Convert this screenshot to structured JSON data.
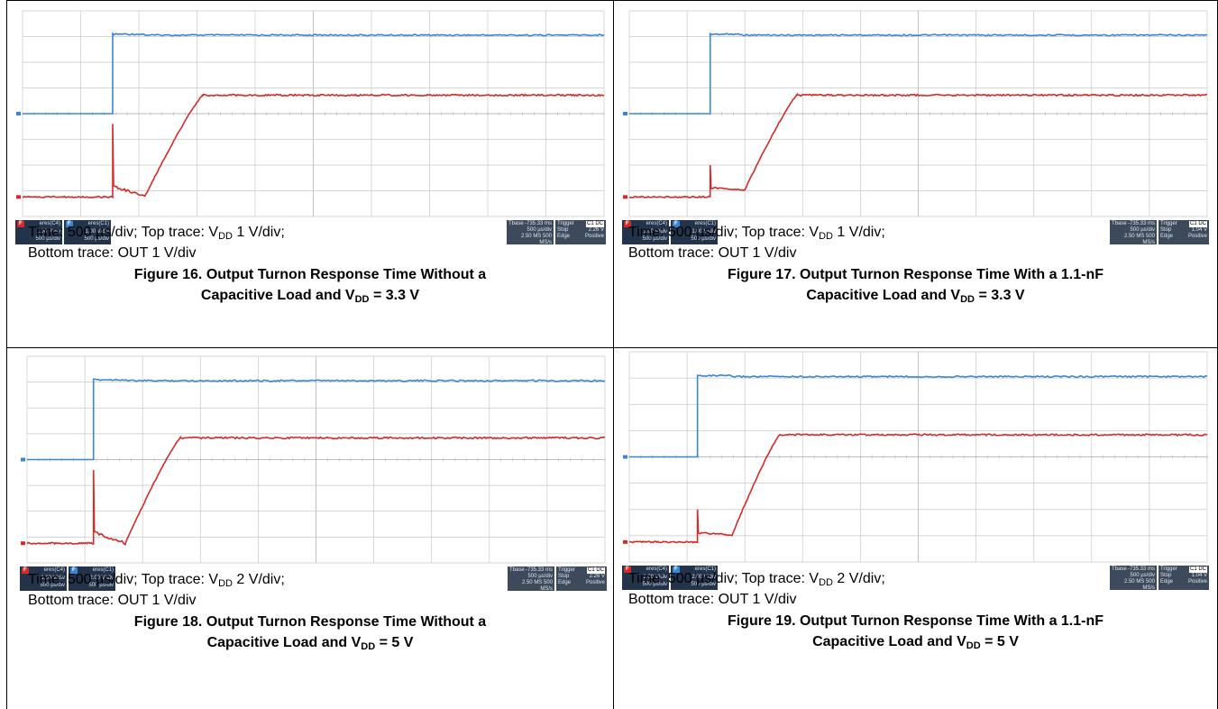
{
  "colors": {
    "ch_top": "#3a86d6",
    "ch_bottom": "#d42a2a",
    "grid": "#c8c8c8",
    "status_bg": "#22334a"
  },
  "panels": [
    {
      "line1_pre": "Time: 500 ",
      "line1_mu": "µ",
      "line1_post": "s/div; Top trace: V",
      "line1_sub": "DD",
      "line1_tail": " 1 V/div;",
      "line2": "Bottom trace: OUT 1 V/div",
      "cap1": "Figure 16. Output Turnon Response Time Without a",
      "cap2_pre": "Capacitive Load and V",
      "cap2_sub": "DD",
      "cap2_post": " = 3.3 V",
      "tiles": [
        {
          "tag": "F",
          "name": "eres(C4)",
          "l1": "1.00 V/div",
          "l2": "500 µs/div"
        },
        {
          "tag": "F",
          "name": "eres(C1)",
          "l1": "1.00 V/div",
          "l2": "500 µs/div"
        }
      ],
      "tbase": {
        "label": "Tbase",
        "value": "-735.33 ms",
        "l1": "500 µs/div",
        "l2": "2.50 MS  500 MS/s"
      },
      "trigger": {
        "label": "Trigger",
        "ch": "C1 DC",
        "mode": "Stop",
        "level": "2.26 V",
        "type": "Edge",
        "slope": "Positive"
      },
      "trace": {
        "edge": 0.155,
        "bottom_type": "no_cap",
        "bottom_high": 0.41,
        "bottom_rise_end": 0.31
      }
    },
    {
      "line1_pre": "Time: 500 ",
      "line1_mu": "µ",
      "line1_post": "s/div; Top trace: V",
      "line1_sub": "DD",
      "line1_tail": " 1 V/div;",
      "line2": "Bottom trace: OUT 1 V/div",
      "cap1": "Figure 17. Output Turnon Response Time With a 1.1-nF",
      "cap2_pre": "Capacitive Load and V",
      "cap2_sub": "DD",
      "cap2_post": " = 3.3 V",
      "tiles": [
        {
          "tag": "F",
          "name": "eres(C4)",
          "l1": "1.00 V/div",
          "l2": "500 µs/div"
        },
        {
          "tag": "F",
          "name": "eres(C1)",
          "l1": "1.00 V/div",
          "l2": "500 µs/div"
        }
      ],
      "tbase": {
        "label": "Tbase",
        "value": "-735.33 ms",
        "l1": "500 µs/div",
        "l2": "2.50 MS  500 MS/s"
      },
      "trigger": {
        "label": "Trigger",
        "ch": "C1 DC",
        "mode": "Stop",
        "level": "1.04 V",
        "type": "Edge",
        "slope": "Positive"
      },
      "trace": {
        "edge": 0.14,
        "bottom_type": "cap",
        "bottom_high": 0.41,
        "bottom_rise_end": 0.29
      }
    },
    {
      "line1_pre": "Time: 500 ",
      "line1_mu": "µ",
      "line1_post": "s/div; Top trace: V",
      "line1_sub": "DD",
      "line1_tail": " 2 V/div;",
      "line2": "Bottom trace: OUT 1 V/div",
      "cap1": "Figure 18. Output Turnon Response Time Without a",
      "cap2_pre": "Capacitive Load and V",
      "cap2_sub": "DD",
      "cap2_post": " = 5 V",
      "tiles": [
        {
          "tag": "F",
          "name": "eres(C4)",
          "l1": "1.00 V/div",
          "l2": "500 µs/div"
        },
        {
          "tag": "F",
          "name": "eres(C1)",
          "l1": "2.00 V/div",
          "l2": "500 µs/div"
        }
      ],
      "tbase": {
        "label": "Tbase",
        "value": "-735.33 ms",
        "l1": "500 µs/div",
        "l2": "2.50 MS  500 MS/s"
      },
      "trigger": {
        "label": "Trigger",
        "ch": "C1 DC",
        "mode": "Stop",
        "level": "2.26 V",
        "type": "Edge",
        "slope": "Positive"
      },
      "trace": {
        "edge": 0.115,
        "bottom_type": "no_cap",
        "bottom_high": 0.395,
        "bottom_rise_end": 0.265
      }
    },
    {
      "line1_pre": "Time: 500 ",
      "line1_mu": "µ",
      "line1_post": "s/div; Top trace: V",
      "line1_sub": "DD",
      "line1_tail": " 2 V/div;",
      "line2": "Bottom trace: OUT 1 V/div",
      "cap1": "Figure 19. Output Turnon Response Time With a 1.1-nF",
      "cap2_pre": "Capacitive Load and V",
      "cap2_sub": "DD",
      "cap2_post": " = 5 V",
      "tiles": [
        {
          "tag": "F",
          "name": "eres(C4)",
          "l1": "1.00 V/div",
          "l2": "500 µs/div"
        },
        {
          "tag": "F",
          "name": "eres(C1)",
          "l1": "2.00 V/div",
          "l2": "500 µs/div"
        }
      ],
      "tbase": {
        "label": "Tbase",
        "value": "-735.33 ms",
        "l1": "500 µs/div",
        "l2": "2.50 MS  500 MS/s"
      },
      "trigger": {
        "label": "Trigger",
        "ch": "C1 DC",
        "mode": "Stop",
        "level": "1.04 V",
        "type": "Edge",
        "slope": "Positive"
      },
      "trace": {
        "edge": 0.118,
        "bottom_type": "cap",
        "bottom_high": 0.395,
        "bottom_rise_end": 0.26
      }
    }
  ]
}
